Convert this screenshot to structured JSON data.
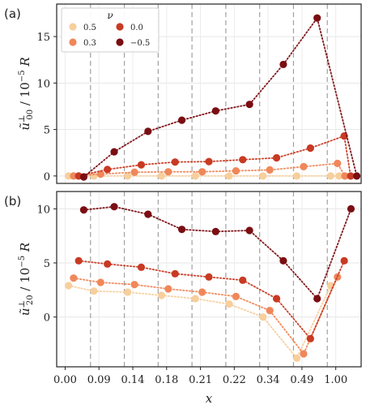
{
  "chart_data": [
    {
      "type": "scatter",
      "panel_label": "(a)",
      "ylabel_main": "ũ",
      "ylabel_sup": "⊥",
      "ylabel_sub": "00",
      "ylabel_rest": " / 10",
      "ylabel_exp": "−5",
      "ylabel_unit": " R",
      "ylim": [
        -0.8,
        18.5
      ],
      "yticks": [
        0,
        5,
        10,
        15
      ],
      "ytick_labels": [
        "0",
        "5",
        "10",
        "15"
      ],
      "grid": true,
      "legend": {
        "title": "ν",
        "placement": "top-left",
        "entries": [
          {
            "label": "0.5",
            "color": "#f7cf9c"
          },
          {
            "label": "0.0",
            "color": "#c83a23"
          },
          {
            "label": "0.3",
            "color": "#f0875a"
          },
          {
            "label": "−0.5",
            "color": "#7a0e12"
          }
        ]
      },
      "series": [
        {
          "color": "#f7cf9c",
          "points": [
            [
              0.1,
              0.0
            ],
            [
              0.85,
              0.0
            ],
            [
              1.85,
              0.0
            ],
            [
              2.85,
              0.0
            ],
            [
              3.85,
              0.0
            ],
            [
              4.85,
              0.0
            ],
            [
              5.85,
              0.0
            ],
            [
              6.85,
              0.0
            ],
            [
              7.85,
              0.0
            ],
            [
              8.1,
              0.0
            ]
          ]
        },
        {
          "color": "#f0875a",
          "points": [
            [
              0.25,
              0.0
            ],
            [
              1.05,
              0.2
            ],
            [
              2.05,
              0.4
            ],
            [
              3.05,
              0.45
            ],
            [
              4.05,
              0.45
            ],
            [
              5.05,
              0.55
            ],
            [
              6.05,
              0.65
            ],
            [
              7.05,
              1.0
            ],
            [
              8.05,
              1.35
            ],
            [
              8.27,
              0.0
            ]
          ]
        },
        {
          "color": "#c83a23",
          "points": [
            [
              0.4,
              0.0
            ],
            [
              1.25,
              0.7
            ],
            [
              2.25,
              1.2
            ],
            [
              3.25,
              1.5
            ],
            [
              4.25,
              1.55
            ],
            [
              5.25,
              1.75
            ],
            [
              6.25,
              1.95
            ],
            [
              7.25,
              3.0
            ],
            [
              8.25,
              4.3
            ],
            [
              8.44,
              0.0
            ]
          ]
        },
        {
          "color": "#7a0e12",
          "points": [
            [
              0.55,
              -0.1
            ],
            [
              1.45,
              2.6
            ],
            [
              2.45,
              4.8
            ],
            [
              3.45,
              6.0
            ],
            [
              4.45,
              7.0
            ],
            [
              5.45,
              7.7
            ],
            [
              6.45,
              12.0
            ],
            [
              7.45,
              17.0
            ],
            [
              8.62,
              0.0
            ]
          ]
        }
      ]
    },
    {
      "type": "scatter",
      "panel_label": "(b)",
      "ylabel_main": "ũ",
      "ylabel_sup": "⊥",
      "ylabel_sub": "20",
      "ylabel_rest": " / 10",
      "ylabel_exp": "−5",
      "ylabel_unit": " R",
      "xlabel": "x",
      "ylim": [
        -4.6,
        11.6
      ],
      "yticks": [
        0,
        5,
        10
      ],
      "ytick_labels": [
        "0",
        "5",
        "10"
      ],
      "x_categories": [
        "0.00",
        "0.09",
        "0.14",
        "0.18",
        "0.21",
        "0.22",
        "0.34",
        "0.49",
        "1.00"
      ],
      "grid": true,
      "series": [
        {
          "color": "#f7cf9c",
          "points": [
            [
              0.1,
              2.9
            ],
            [
              0.85,
              2.4
            ],
            [
              1.85,
              2.3
            ],
            [
              2.85,
              2.0
            ],
            [
              3.85,
              1.7
            ],
            [
              4.85,
              1.2
            ],
            [
              5.85,
              0.0
            ],
            [
              6.85,
              -3.8
            ],
            [
              7.85,
              2.9
            ]
          ]
        },
        {
          "color": "#f0875a",
          "points": [
            [
              0.25,
              3.6
            ],
            [
              1.05,
              3.2
            ],
            [
              2.05,
              3.0
            ],
            [
              3.05,
              2.6
            ],
            [
              4.05,
              2.3
            ],
            [
              5.05,
              1.9
            ],
            [
              6.05,
              0.6
            ],
            [
              7.05,
              -3.4
            ],
            [
              8.05,
              3.7
            ]
          ]
        },
        {
          "color": "#c83a23",
          "points": [
            [
              0.4,
              5.2
            ],
            [
              1.25,
              4.9
            ],
            [
              2.25,
              4.6
            ],
            [
              3.25,
              4.0
            ],
            [
              4.25,
              3.7
            ],
            [
              5.25,
              3.4
            ],
            [
              6.25,
              1.7
            ],
            [
              7.25,
              -2.0
            ],
            [
              8.25,
              5.2
            ]
          ]
        },
        {
          "color": "#7a0e12",
          "points": [
            [
              0.55,
              9.9
            ],
            [
              1.45,
              10.2
            ],
            [
              2.45,
              9.5
            ],
            [
              3.45,
              8.1
            ],
            [
              4.45,
              7.9
            ],
            [
              5.45,
              8.0
            ],
            [
              6.45,
              5.2
            ],
            [
              7.45,
              1.7
            ],
            [
              8.45,
              10.0
            ]
          ]
        }
      ]
    }
  ]
}
